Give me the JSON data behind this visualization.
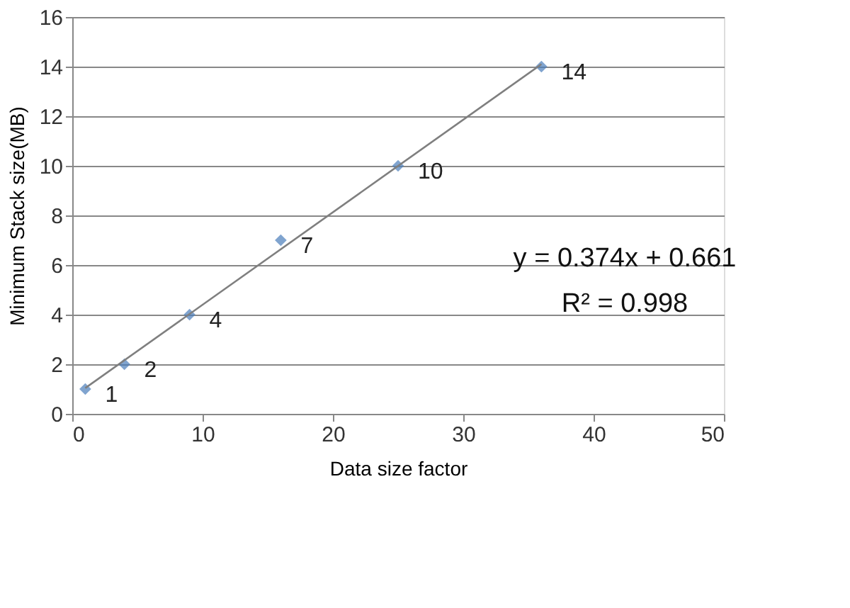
{
  "chart_data": {
    "type": "scatter",
    "xlabel": "Data size factor",
    "ylabel": "Minimum Stack size(MB)",
    "series": [
      {
        "type": "scatter",
        "color": "#4a7ebb",
        "marker": "diamond",
        "x": [
          1,
          4,
          9,
          16,
          25,
          36
        ],
        "values": [
          1,
          2,
          4,
          7,
          10,
          14
        ],
        "value_labels": [
          "1",
          "2",
          "4",
          "7",
          "10",
          "14"
        ]
      },
      {
        "type": "line",
        "color": "#7f7f7f",
        "marker": "none",
        "x": [
          1,
          36
        ],
        "values": [
          1.04,
          14.1
        ]
      }
    ],
    "xlim": [
      0,
      50
    ],
    "xticks": [
      0,
      10,
      20,
      30,
      40,
      50
    ],
    "ylim": [
      0,
      16
    ],
    "yticks": [
      0,
      2,
      4,
      6,
      8,
      10,
      12,
      14,
      16
    ],
    "grid": "y",
    "annotations": [
      "y = 0.374x + 0.661",
      "R² = 0.998"
    ]
  }
}
